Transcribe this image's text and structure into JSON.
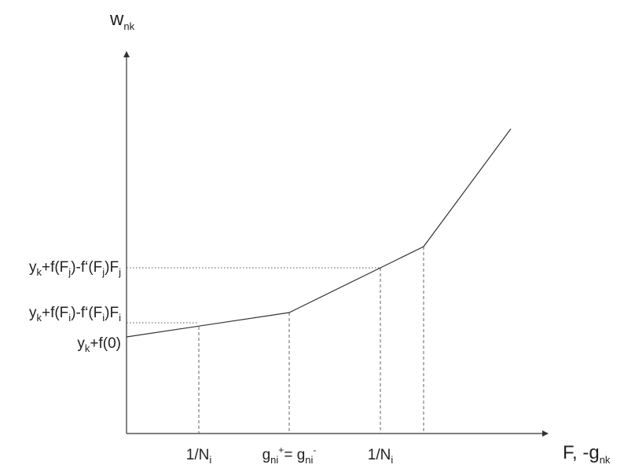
{
  "axes": {
    "y_label": {
      "base": "w",
      "sub": "nk"
    },
    "x_label": {
      "base": "F, -g",
      "sub": "nk"
    }
  },
  "y_ticks": [
    {
      "key": "y0",
      "parts": [
        [
          "y",
          ""
        ],
        [
          "k",
          "sub"
        ],
        [
          "+f(0)",
          ""
        ]
      ]
    },
    {
      "key": "y_i",
      "parts": [
        [
          "y",
          ""
        ],
        [
          "k",
          "sub"
        ],
        [
          "+f(F",
          ""
        ],
        [
          "i",
          "sub"
        ],
        [
          ")-f‘(F",
          ""
        ],
        [
          "i",
          "sub"
        ],
        [
          ")F",
          ""
        ],
        [
          "i",
          "sub"
        ]
      ]
    },
    {
      "key": "y_j",
      "parts": [
        [
          "y",
          ""
        ],
        [
          "k",
          "sub"
        ],
        [
          "+f(F",
          ""
        ],
        [
          "j",
          "sub"
        ],
        [
          ")-f‘(F",
          ""
        ],
        [
          "j",
          "sub"
        ],
        [
          ")F",
          ""
        ],
        [
          "j",
          "sub"
        ]
      ]
    }
  ],
  "x_ticks": [
    {
      "key": "x1",
      "parts": [
        [
          "1/N",
          ""
        ],
        [
          "i",
          "sub"
        ]
      ]
    },
    {
      "key": "x2",
      "parts": [
        [
          "g",
          ""
        ],
        [
          "ni",
          "sub"
        ],
        [
          "+",
          "sup"
        ],
        "= ",
        [
          "g",
          ""
        ],
        [
          "ni",
          "sub"
        ],
        [
          "-",
          "sup"
        ]
      ]
    },
    {
      "key": "x3",
      "parts": [
        [
          "1/N",
          ""
        ],
        [
          "i",
          "sub"
        ]
      ]
    }
  ],
  "colors": {
    "line": "#333333",
    "guide": "#555555",
    "text": "#222222"
  }
}
